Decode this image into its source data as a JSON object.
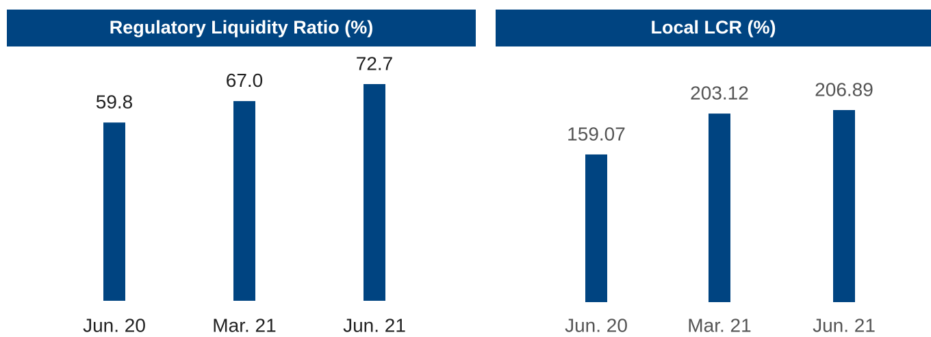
{
  "chart_data": [
    {
      "type": "bar",
      "title": "Regulatory Liquidity Ratio (%)",
      "categories": [
        "Jun. 20",
        "Mar. 21",
        "Jun. 21"
      ],
      "values": [
        59.8,
        67.0,
        72.7
      ],
      "value_labels": [
        "59.8",
        "67.0",
        "72.7"
      ],
      "color": "#004481"
    },
    {
      "type": "bar",
      "title": "Local LCR (%)",
      "categories": [
        "Jun. 20",
        "Mar. 21",
        "Jun. 21"
      ],
      "values": [
        159.07,
        203.12,
        206.89
      ],
      "value_labels": [
        "159.07",
        "203.12",
        "206.89"
      ],
      "color": "#004481"
    }
  ]
}
